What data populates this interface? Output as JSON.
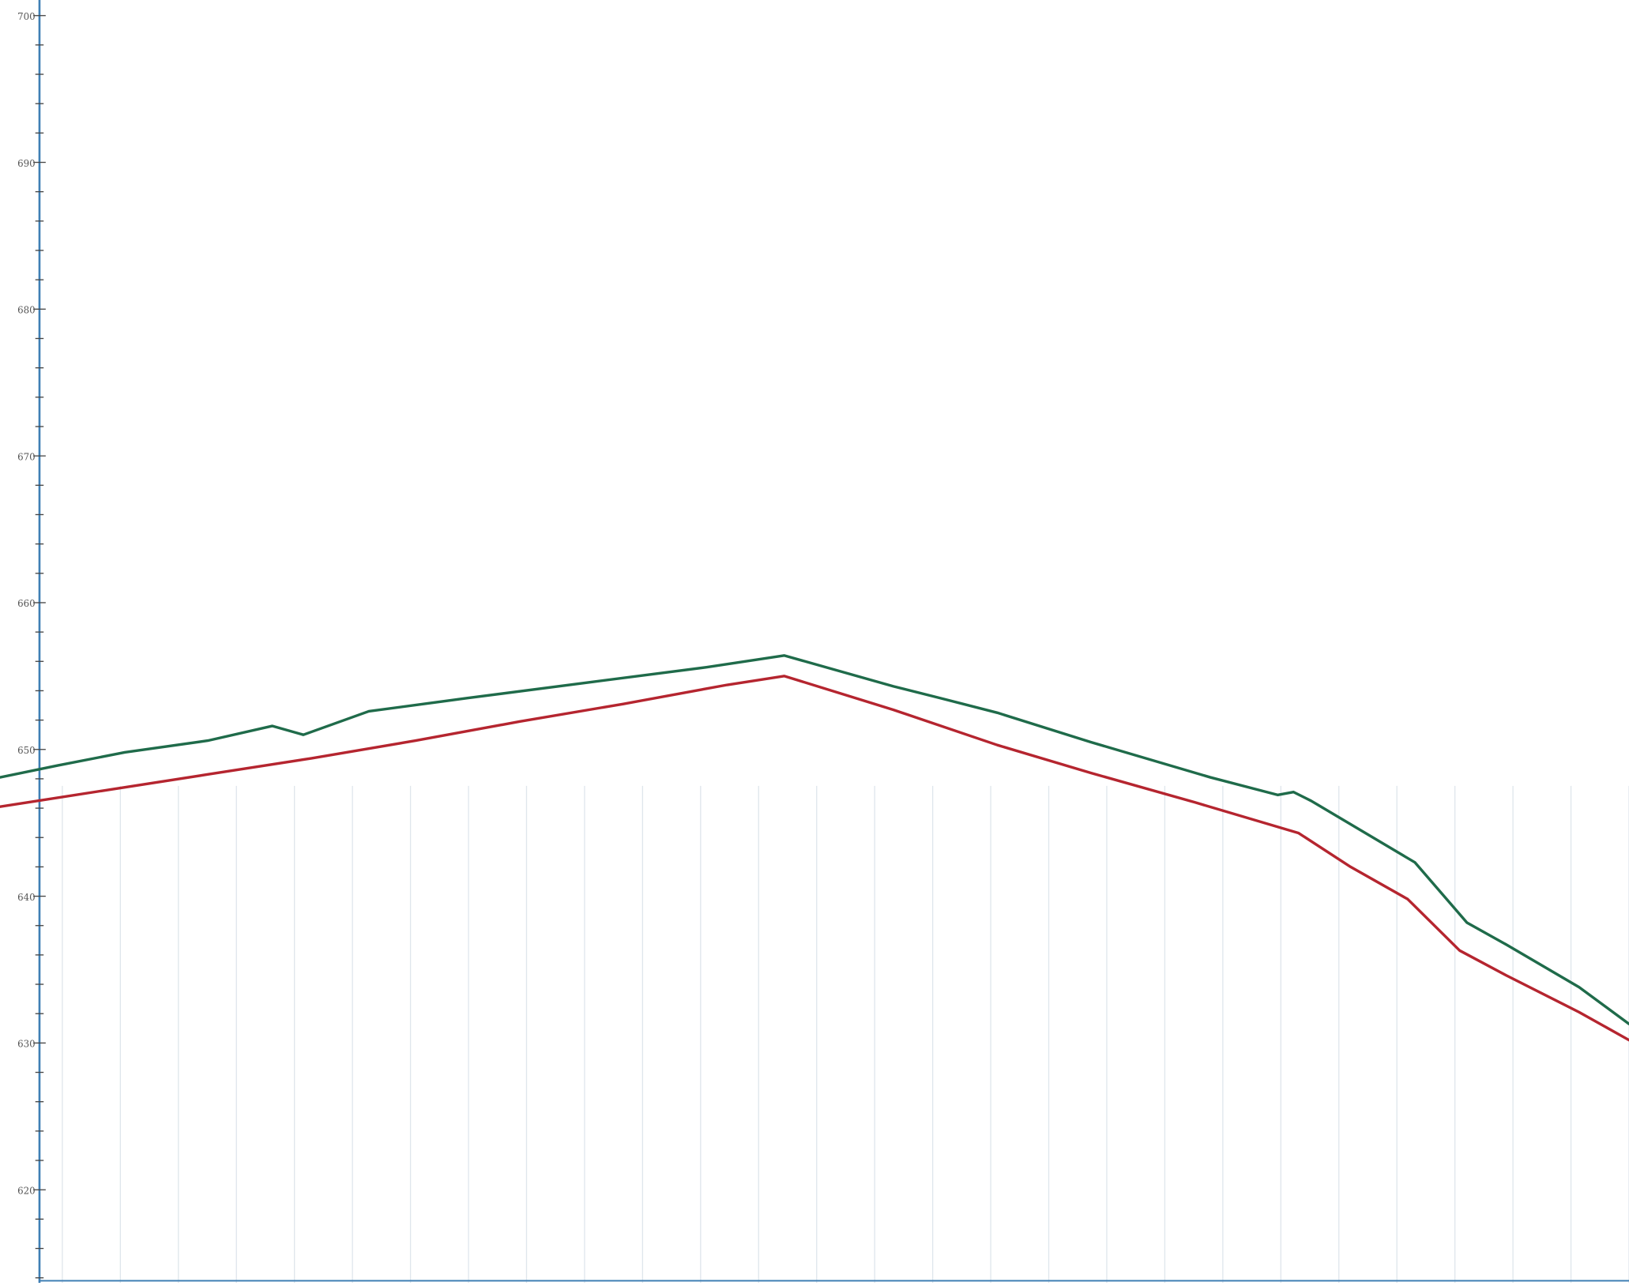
{
  "chart_data": {
    "type": "line",
    "title": "",
    "xlabel": "",
    "ylabel": "",
    "ylim": [
      612,
      700
    ],
    "xlim": [
      0,
      1568
    ],
    "yticks": [
      700,
      690,
      680,
      670,
      660,
      650,
      640,
      630,
      620
    ],
    "ytick_labels": [
      "700",
      "690",
      "680",
      "670",
      "660",
      "650",
      "640",
      "630",
      "620"
    ],
    "minor_tick_step": 2,
    "grid": {
      "vertical": true,
      "horizontal": false,
      "vertical_count": 28
    },
    "colors": {
      "upper_line": "#1f6b4a",
      "lower_line": "#b5252f",
      "axis": "#3f7fb5",
      "grid": "#dfe6ec"
    },
    "series": [
      {
        "key": "upper",
        "x": [
          0,
          55,
          120,
          200,
          262,
          292,
          355,
          450,
          570,
          680,
          755,
          860,
          905,
          960,
          1050,
          1165,
          1230,
          1245,
          1262,
          1362,
          1412,
          1450,
          1520,
          1568
        ],
        "y": [
          648.1,
          648.9,
          649.8,
          650.6,
          651.6,
          651.0,
          652.6,
          653.5,
          654.6,
          655.6,
          656.4,
          654.3,
          653.5,
          652.5,
          650.5,
          648.1,
          646.9,
          647.1,
          646.5,
          642.3,
          638.2,
          636.7,
          633.8,
          631.3
        ]
      },
      {
        "key": "lower",
        "x": [
          0,
          100,
          200,
          300,
          400,
          500,
          600,
          700,
          755,
          860,
          960,
          1050,
          1150,
          1250,
          1300,
          1355,
          1405,
          1450,
          1520,
          1568
        ],
        "y": [
          646.1,
          647.2,
          648.3,
          649.4,
          650.6,
          651.9,
          653.1,
          654.4,
          655.0,
          652.7,
          650.3,
          648.4,
          646.4,
          644.3,
          642.0,
          639.8,
          636.3,
          634.6,
          632.1,
          630.2
        ]
      }
    ]
  }
}
